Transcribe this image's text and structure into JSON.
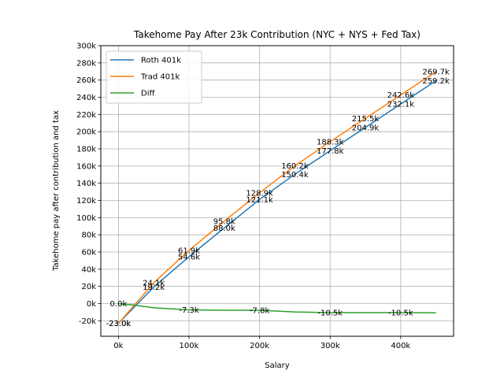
{
  "chart_data": {
    "type": "line",
    "title": "Takehome Pay After 23k Contribution (NYC + NYS + Fed Tax)",
    "xlabel": "Salary",
    "ylabel": "Takehome pay after contribution and tax",
    "xlim": [
      -25000,
      475000
    ],
    "ylim": [
      -38000,
      300000
    ],
    "grid": true,
    "legend_position": "upper-left",
    "x_ticks": [
      0,
      100000,
      200000,
      300000,
      400000
    ],
    "x_tick_labels": [
      "0k",
      "100k",
      "200k",
      "300k",
      "400k"
    ],
    "y_ticks": [
      -20000,
      0,
      20000,
      40000,
      60000,
      80000,
      100000,
      120000,
      140000,
      160000,
      180000,
      200000,
      220000,
      240000,
      260000,
      280000,
      300000
    ],
    "y_tick_labels": [
      "-20k",
      "0k",
      "20k",
      "40k",
      "60k",
      "80k",
      "100k",
      "120k",
      "140k",
      "160k",
      "180k",
      "200k",
      "220k",
      "240k",
      "260k",
      "280k",
      "300k"
    ],
    "series": [
      {
        "name": "Roth 401k",
        "color": "#1f77b4",
        "x": [
          0,
          50000,
          100000,
          150000,
          200000,
          250000,
          300000,
          350000,
          400000,
          450000
        ],
        "values": [
          -23000,
          19200,
          54600,
          88000,
          121100,
          150400,
          177800,
          204900,
          232100,
          259200
        ],
        "labels": [
          "-23.0k",
          "19.2k",
          "54.6k",
          "88.0k",
          "121.1k",
          "150.4k",
          "177.8k",
          "204.9k",
          "232.1k",
          "259.2k"
        ]
      },
      {
        "name": "Trad 401k",
        "color": "#ff7f0e",
        "x": [
          0,
          50000,
          100000,
          150000,
          200000,
          250000,
          300000,
          350000,
          400000,
          450000
        ],
        "values": [
          -23000,
          24100,
          61900,
          95800,
          128900,
          160200,
          188300,
          215500,
          242600,
          269700
        ],
        "labels": [
          "-23.0k",
          "24.1k",
          "61.9k",
          "95.8k",
          "128.9k",
          "160.2k",
          "188.3k",
          "215.5k",
          "242.6k",
          "269.7k"
        ]
      },
      {
        "name": "Diff",
        "color": "#2ca02c",
        "x": [
          0,
          25000,
          50000,
          100000,
          150000,
          200000,
          250000,
          300000,
          350000,
          400000,
          450000
        ],
        "values": [
          0,
          -2000,
          -4900,
          -7300,
          -7800,
          -7800,
          -9700,
          -10500,
          -10500,
          -10500,
          -10800
        ],
        "labeled_points": [
          {
            "x": 0,
            "y": 0,
            "label": "0.0k"
          },
          {
            "x": 100000,
            "y": -7300,
            "label": "-7.3k"
          },
          {
            "x": 200000,
            "y": -7800,
            "label": "-7.8k"
          },
          {
            "x": 300000,
            "y": -10500,
            "label": "-10.5k"
          },
          {
            "x": 400000,
            "y": -10500,
            "label": "-10.5k"
          }
        ]
      }
    ]
  }
}
